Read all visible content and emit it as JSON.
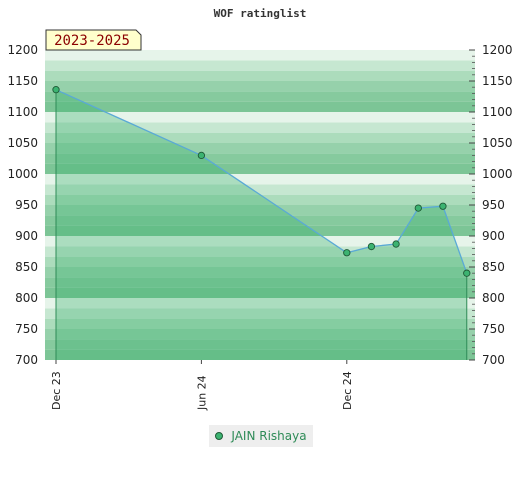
{
  "chart_data": {
    "type": "area",
    "title": "WOF ratinglist",
    "period_label": "2023-2025",
    "ylim": [
      700,
      1200
    ],
    "yticks": [
      700,
      750,
      800,
      850,
      900,
      950,
      1000,
      1050,
      1100,
      1150,
      1200
    ],
    "x_range": [
      "2023-12-01",
      "2025-04-25"
    ],
    "xticks": [
      {
        "date": "2023-12-01",
        "label": "Dec 23"
      },
      {
        "date": "2024-06-01",
        "label": "Jun 24"
      },
      {
        "date": "2024-12-01",
        "label": "Dec 24"
      }
    ],
    "series": [
      {
        "name": "JAIN Rishaya",
        "color": "#5aa9d6",
        "fill": "#3cb371",
        "x": [
          "2023-12-01",
          "2024-06-01",
          "2024-12-01",
          "2025-01-01",
          "2025-02-01",
          "2025-03-01",
          "2025-04-01",
          "2025-05-01"
        ],
        "y": [
          1136,
          1030,
          873,
          883,
          887,
          945,
          948,
          840
        ]
      }
    ],
    "grid": true,
    "legend_position": "bottom-center"
  }
}
